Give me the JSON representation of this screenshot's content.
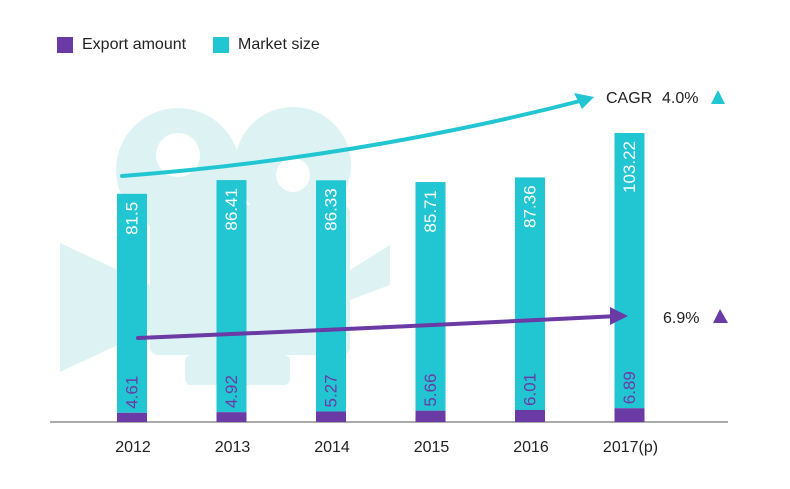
{
  "legend": {
    "export_label": "Export amount",
    "market_label": "Market size"
  },
  "annotations": {
    "market_cagr_prefix": "CAGR",
    "market_cagr_value": "4.0%",
    "export_cagr_value": "6.9%"
  },
  "colors": {
    "export": "#6a3aa5",
    "market": "#22c6d2",
    "watermark": "#ddf3f3"
  },
  "chart_data": {
    "type": "bar",
    "categories": [
      "2012",
      "2013",
      "2014",
      "2015",
      "2016",
      "2017(p)"
    ],
    "series": [
      {
        "name": "Export amount",
        "values": [
          4.61,
          4.92,
          5.27,
          5.66,
          6.01,
          6.89
        ]
      },
      {
        "name": "Market size",
        "values": [
          81.5,
          86.41,
          86.33,
          85.71,
          87.36,
          103.22
        ]
      }
    ],
    "grid": false,
    "legend_position": "top-left"
  }
}
